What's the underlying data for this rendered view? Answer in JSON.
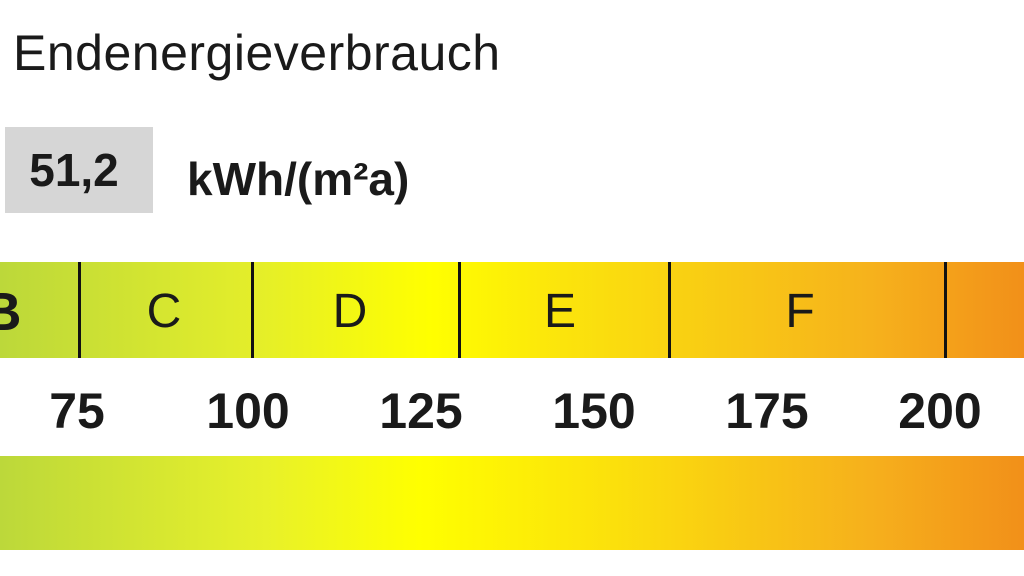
{
  "title": "Endenergieverbrauch",
  "value": "51,2",
  "unit": "kWh/(m²a)",
  "classes": [
    "B",
    "C",
    "D",
    "E",
    "F"
  ],
  "ticks": [
    "75",
    "100",
    "125",
    "150",
    "175",
    "200"
  ],
  "colors": {
    "green": "#bcd83a",
    "yellow": "#ffff00",
    "orange": "#f29019",
    "value_box": "#d6d6d6"
  }
}
